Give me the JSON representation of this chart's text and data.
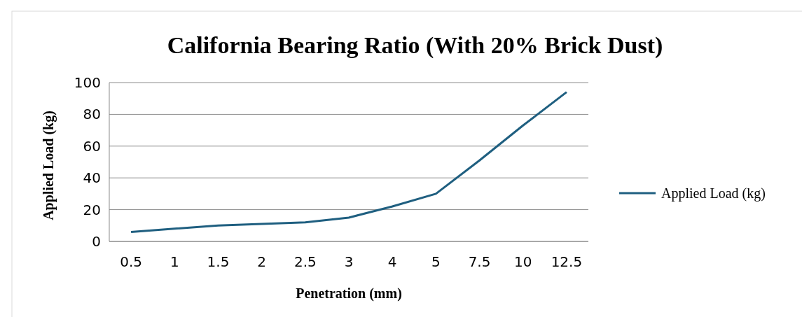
{
  "chart_data": {
    "type": "line",
    "title": "California Bearing Ratio (With 20% Brick Dust)",
    "xlabel": "Penetration (mm)",
    "ylabel": "Applied Load (kg)",
    "categories": [
      "0.5",
      "1",
      "1.5",
      "2",
      "2.5",
      "3",
      "4",
      "5",
      "7.5",
      "10",
      "12.5"
    ],
    "series": [
      {
        "name": "Applied Load (kg)",
        "color": "#1f5f80",
        "values": [
          6,
          8,
          10,
          11,
          12,
          15,
          22,
          30,
          51,
          73,
          94
        ]
      }
    ],
    "ylim": [
      0,
      100
    ],
    "yticks": [
      0,
      20,
      40,
      60,
      80,
      100
    ],
    "grid": "y",
    "legend": "right",
    "marker": "none",
    "line_style": "solid"
  }
}
